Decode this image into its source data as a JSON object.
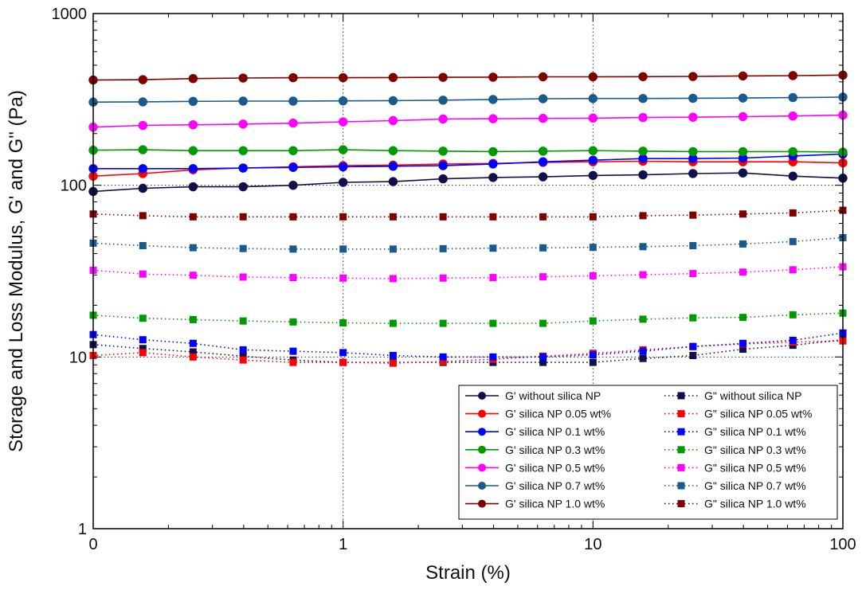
{
  "chart_data": {
    "type": "line",
    "x_scale": "log",
    "y_scale": "log",
    "xlabel": "Strain (%)",
    "ylabel": "Storage and Loss Modulus, G' and G\" (Pa)",
    "xlim": [
      0.1,
      100
    ],
    "ylim": [
      1,
      1000
    ],
    "x_ticks": [
      0.1,
      1,
      10,
      100
    ],
    "x_tick_labels": [
      "0",
      "1",
      "10",
      "100"
    ],
    "y_ticks": [
      1,
      10,
      100,
      1000
    ],
    "y_tick_labels": [
      "1",
      "10",
      "100",
      "1000"
    ],
    "grid": "dotted at major ticks",
    "legend_position": "bottom-right",
    "x": [
      0.1,
      0.158,
      0.251,
      0.398,
      0.631,
      1.0,
      1.585,
      2.512,
      3.981,
      6.31,
      10.0,
      15.85,
      25.12,
      39.81,
      63.1,
      100.0
    ],
    "series": [
      {
        "name": "G' without silica NP",
        "color": "#10104a",
        "marker": "circle",
        "style": "solid",
        "values": [
          92,
          96,
          98,
          98,
          100,
          104,
          105,
          109,
          111,
          112,
          114,
          115,
          117,
          118,
          113,
          110
        ]
      },
      {
        "name": "G' silica NP 0.05 wt%",
        "color": "#ff0000",
        "marker": "circle",
        "style": "solid",
        "values": [
          113,
          117,
          123,
          126,
          128,
          130,
          131,
          133,
          134,
          136,
          137,
          138,
          137,
          137,
          137,
          135
        ]
      },
      {
        "name": "G' silica NP 0.1 wt%",
        "color": "#0000ff",
        "marker": "circle",
        "style": "solid",
        "values": [
          125,
          125,
          125,
          126,
          127,
          128,
          129,
          130,
          133,
          137,
          140,
          143,
          143,
          144,
          148,
          152
        ]
      },
      {
        "name": "G' silica NP 0.3 wt%",
        "color": "#009900",
        "marker": "circle",
        "style": "solid",
        "values": [
          160,
          161,
          159,
          159,
          159,
          161,
          159,
          158,
          157,
          158,
          159,
          158,
          157,
          157,
          157,
          156
        ]
      },
      {
        "name": "G' silica NP 0.5 wt%",
        "color": "#ff00ff",
        "marker": "circle",
        "style": "solid",
        "values": [
          218,
          223,
          225,
          227,
          230,
          234,
          238,
          243,
          244,
          245,
          246,
          248,
          249,
          251,
          253,
          256
        ]
      },
      {
        "name": "G' silica NP 0.7 wt%",
        "color": "#1a5a8c",
        "marker": "circle",
        "style": "solid",
        "values": [
          305,
          306,
          308,
          309,
          309,
          310,
          311,
          313,
          316,
          319,
          320,
          320,
          321,
          322,
          324,
          326
        ]
      },
      {
        "name": "G' silica NP 1.0 wt%",
        "color": "#800000",
        "marker": "circle",
        "style": "solid",
        "values": [
          410,
          412,
          418,
          421,
          423,
          423,
          424,
          425,
          426,
          428,
          428,
          429,
          430,
          433,
          435,
          438
        ]
      },
      {
        "name": "G\" without silica NP",
        "color": "#10104a",
        "marker": "square",
        "style": "dotted",
        "values": [
          11.8,
          11.2,
          10.7,
          10.1,
          9.6,
          9.3,
          9.3,
          9.3,
          9.3,
          9.3,
          9.3,
          9.8,
          10.2,
          11.1,
          11.7,
          12.6
        ]
      },
      {
        "name": "G\" silica NP 0.05 wt%",
        "color": "#ff0000",
        "marker": "square",
        "style": "dotted",
        "values": [
          10.2,
          10.6,
          10.0,
          9.6,
          9.3,
          9.3,
          9.2,
          9.4,
          9.7,
          10.1,
          10.5,
          11.0,
          11.5,
          11.9,
          12.2,
          12.4
        ]
      },
      {
        "name": "G\" silica NP 0.1 wt%",
        "color": "#0000ff",
        "marker": "square",
        "style": "dotted",
        "values": [
          13.5,
          12.6,
          12.0,
          11.0,
          10.8,
          10.6,
          10.2,
          10.0,
          10.0,
          10.0,
          10.3,
          10.8,
          11.5,
          12.0,
          12.5,
          13.8
        ]
      },
      {
        "name": "G\" silica NP 0.3 wt%",
        "color": "#009900",
        "marker": "square",
        "style": "dotted",
        "values": [
          17.5,
          16.8,
          16.5,
          16.2,
          16.0,
          15.8,
          15.7,
          15.7,
          15.7,
          15.7,
          16.2,
          16.6,
          16.9,
          17.0,
          17.6,
          18.0
        ]
      },
      {
        "name": "G\" silica NP 0.5 wt%",
        "color": "#ff00ff",
        "marker": "square",
        "style": "dotted",
        "values": [
          32,
          30.4,
          29.9,
          29.2,
          29.0,
          28.8,
          28.6,
          28.8,
          29.0,
          29.3,
          29.7,
          30.1,
          30.6,
          31.2,
          32.2,
          33.5
        ]
      },
      {
        "name": "G\" silica NP 0.7 wt%",
        "color": "#1a5a8c",
        "marker": "square",
        "style": "dotted",
        "values": [
          46,
          44.5,
          43.3,
          42.8,
          42.5,
          42.5,
          42.5,
          42.7,
          43.0,
          43.2,
          43.5,
          43.9,
          44.5,
          45.5,
          47.0,
          49.5
        ]
      },
      {
        "name": "G\" silica NP 1.0 wt%",
        "color": "#800000",
        "marker": "square",
        "style": "dotted",
        "values": [
          68,
          66.5,
          65.5,
          65.5,
          65.5,
          65.5,
          65.5,
          65.5,
          65.5,
          65.5,
          65.5,
          66.5,
          67,
          68,
          69,
          71.5
        ]
      }
    ]
  }
}
